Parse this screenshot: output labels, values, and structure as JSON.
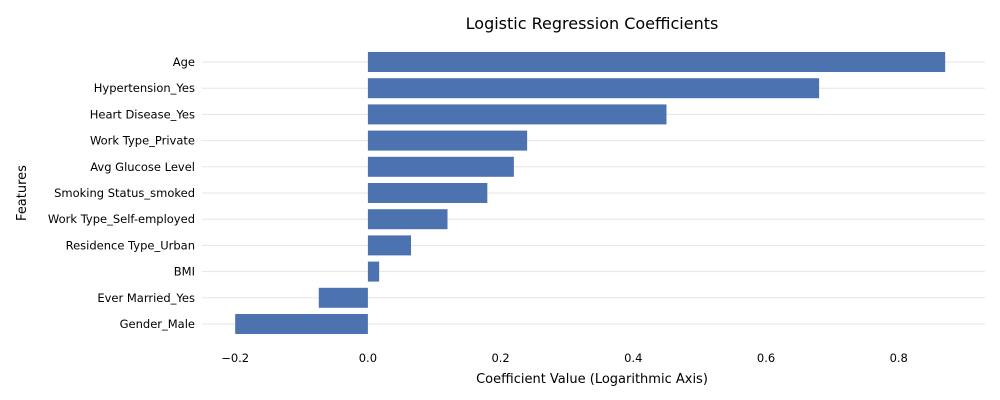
{
  "chart_data": {
    "type": "bar",
    "orientation": "horizontal",
    "title": "Logistic Regression Coefficients",
    "xlabel": "Coefficient Value (Logarithmic Axis)",
    "ylabel": "Features",
    "categories": [
      "Age",
      "Hypertension_Yes",
      "Heart Disease_Yes",
      "Work Type_Private",
      "Avg Glucose Level",
      "Smoking Status_smoked",
      "Work Type_Self-employed",
      "Residence Type_Urban",
      "BMI",
      "Ever Married_Yes",
      "Gender_Male"
    ],
    "values": [
      0.87,
      0.68,
      0.45,
      0.24,
      0.22,
      0.18,
      0.12,
      0.065,
      0.017,
      -0.074,
      -0.2
    ],
    "xlim": [
      -0.25,
      0.93
    ],
    "xticks": [
      -0.2,
      0.0,
      0.2,
      0.4,
      0.6,
      0.8
    ],
    "xtick_labels": [
      "−0.2",
      "0.0",
      "0.2",
      "0.4",
      "0.6",
      "0.8"
    ],
    "grid": "horizontal",
    "bar_color": "#4c72b0"
  }
}
